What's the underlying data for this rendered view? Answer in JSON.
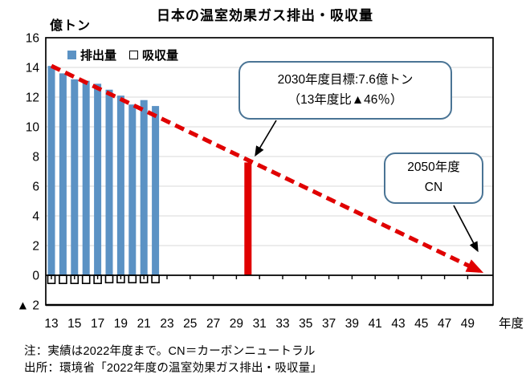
{
  "title": "日本の温室効果ガス排出・吸収量",
  "y_axis": {
    "unit_label": "億トン",
    "min": -2,
    "max": 16,
    "step": 2,
    "tick_labels": [
      "16",
      "14",
      "12",
      "10",
      "8",
      "6",
      "4",
      "2",
      "0",
      "▲ 2"
    ]
  },
  "x_axis": {
    "tick_years": [
      13,
      15,
      17,
      19,
      21,
      23,
      25,
      27,
      29,
      31,
      33,
      35,
      37,
      39,
      41,
      43,
      45,
      47,
      49
    ],
    "suffix_label": "年度"
  },
  "legend": [
    {
      "label": "排出量",
      "swatch": "filled-blue-square"
    },
    {
      "label": "吸収量",
      "swatch": "outline-white-square"
    }
  ],
  "chart_data": {
    "type": "bar",
    "title": "日本の温室効果ガス排出・吸収量",
    "ylabel": "億トン",
    "xlabel": "年度",
    "ylim": [
      -2,
      16
    ],
    "grid": true,
    "x_years": [
      13,
      14,
      15,
      16,
      17,
      18,
      19,
      20,
      21,
      22
    ],
    "series": [
      {
        "name": "排出量",
        "type": "bar",
        "color": "#5B92C4",
        "values": [
          14.1,
          13.6,
          13.2,
          13.1,
          12.9,
          12.5,
          12.1,
          11.5,
          11.8,
          11.4
        ]
      },
      {
        "name": "吸収量",
        "type": "bar",
        "style": "outline",
        "color": "#FFFFFF",
        "values": [
          -0.55,
          -0.55,
          -0.55,
          -0.55,
          -0.55,
          -0.5,
          -0.5,
          -0.5,
          -0.5,
          -0.5
        ]
      }
    ],
    "target_bar": {
      "year": 30,
      "value": 7.6,
      "color": "#E00000",
      "label": "2030年度目標"
    },
    "reduction_path": {
      "type": "dashed_arrow_line",
      "color": "#E00000",
      "from": {
        "year": 13,
        "value": 14.1
      },
      "to": {
        "year": 50,
        "value": 0.3
      }
    }
  },
  "annotations": [
    {
      "lines": [
        "2030年度目標:7.6億トン",
        "（13年度比▲46％）"
      ],
      "points_to": "2030-target-bar"
    },
    {
      "lines": [
        "2050年度",
        "CN"
      ],
      "points_to": "2050-path-end"
    }
  ],
  "notes": [
    "注：実績は2022年度まで。CN＝カーボンニュートラル",
    "出所：環境省「2022年度の温室効果ガス排出・吸収量」"
  ],
  "colors": {
    "bar_blue": "#5B92C4",
    "target_red": "#E00000",
    "callout_border": "#4A7495",
    "grid": "#D9D9D9",
    "axis": "#000000",
    "background": "#FFFFFF"
  }
}
